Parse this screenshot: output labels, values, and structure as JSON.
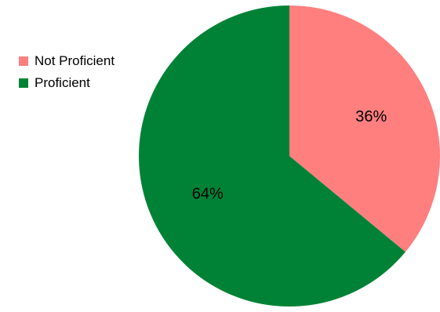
{
  "chart_data": {
    "type": "pie",
    "start": "12 o'clock",
    "direction": "clockwise",
    "slices": [
      {
        "label": "Not Proficient",
        "value": 36,
        "display": "36%",
        "color": "#ff7f7f"
      },
      {
        "label": "Proficient",
        "value": 64,
        "display": "64%",
        "color": "#008236"
      }
    ],
    "legend_position": "top-left"
  }
}
